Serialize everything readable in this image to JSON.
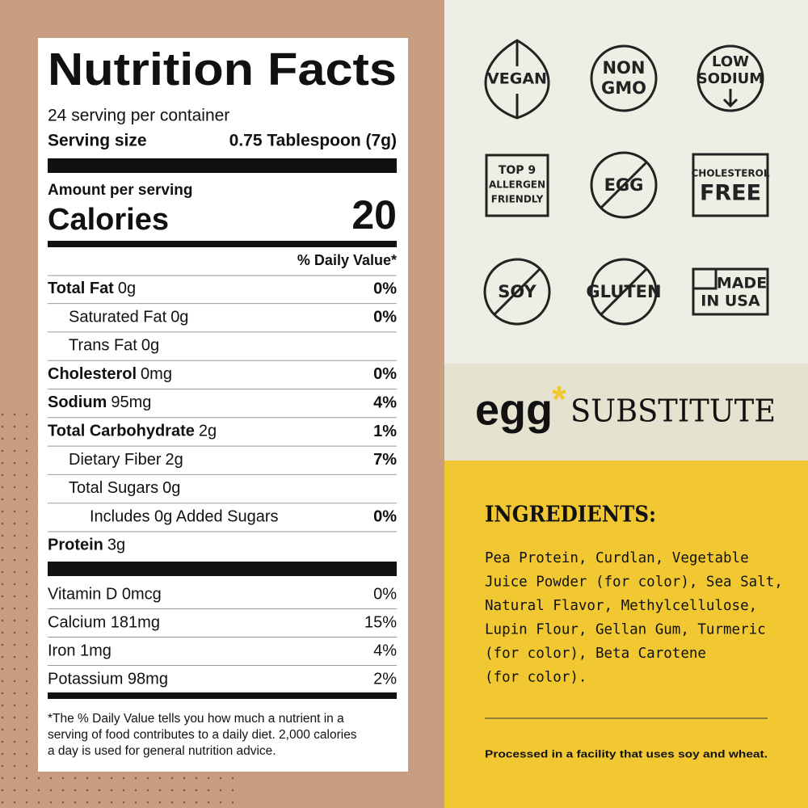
{
  "nutrition_facts": {
    "title": "Nutrition Facts",
    "servings": "24 serving per container",
    "serving_size": {
      "label": "Serving size",
      "value": "0.75 Tablespoon (7g)"
    },
    "amount_per_serving": "Amount per serving",
    "calories": {
      "label": "Calories",
      "value": 20
    },
    "daily_value_header": "% Daily Value*",
    "nutrients": [
      {
        "name": "Total Fat",
        "amount": "0g",
        "daily_value": "0%"
      },
      {
        "name": "Saturated Fat",
        "amount": "0g",
        "daily_value": "0%"
      },
      {
        "name": "Trans Fat",
        "amount": "0g"
      },
      {
        "name": "Cholesterol",
        "amount": "0mg",
        "daily_value": "0%"
      },
      {
        "name": "Sodium",
        "amount": "95mg",
        "daily_value": "4%"
      },
      {
        "name": "Total Carbohydrate",
        "amount": "2g",
        "daily_value": "1%"
      },
      {
        "name": "Dietary Fiber",
        "amount": "2g",
        "daily_value": "7%"
      },
      {
        "name": "Total Sugars",
        "amount": "0g"
      },
      {
        "name": "Includes 0g Added Sugars",
        "daily_value": "0%"
      },
      {
        "name": "Protein",
        "amount": "3g"
      }
    ],
    "vitamins": [
      {
        "name": "Vitamin D 0mcg",
        "daily_value": "0%"
      },
      {
        "name": "Calcium 181mg",
        "daily_value": "15%"
      },
      {
        "name": "Iron 1mg",
        "daily_value": "4%"
      },
      {
        "name": "Potassium 98mg",
        "daily_value": "2%"
      }
    ],
    "footnote": [
      "*The % Daily Value tells you how much a nutrient in a",
      "serving of food contributes to a daily diet. 2,000 calories",
      "a day is used for general nutrition advice."
    ]
  },
  "badges": [
    {
      "lines": [
        "VEGAN"
      ]
    },
    {
      "lines": [
        "NON",
        "GMO"
      ]
    },
    {
      "lines": [
        "LOW",
        "SODIUM"
      ]
    },
    {
      "lines": [
        "TOP 9",
        "ALLERGEN",
        "FRIENDLY"
      ]
    },
    {
      "lines": [
        "EGG"
      ]
    },
    {
      "lines": [
        "CHOLESTEROL",
        "FREE"
      ]
    },
    {
      "lines": [
        "SOY"
      ]
    },
    {
      "lines": [
        "GLUTEN"
      ]
    },
    {
      "lines": [
        "MADE",
        "IN USA"
      ]
    }
  ],
  "brand": {
    "name": "egg",
    "mark": "*",
    "product": "SUBSTITUTE"
  },
  "ingredients": {
    "title": "INGREDIENTS:",
    "lines": [
      "Pea Protein, Curdlan, Vegetable",
      "Juice Powder (for color), Sea Salt,",
      "Natural Flavor, Methylcellulose,",
      "Lupin Flour, Gellan Gum, Turmeric",
      "(for color), Beta Carotene",
      "(for color)."
    ],
    "note": "Processed in a facility that uses soy and wheat."
  }
}
